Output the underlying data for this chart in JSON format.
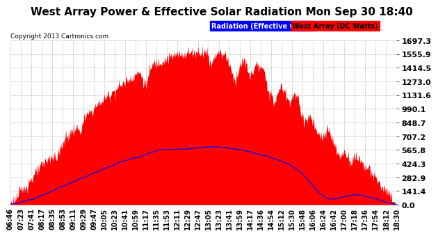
{
  "title": "West Array Power & Effective Solar Radiation Mon Sep 30 18:40",
  "copyright": "Copyright 2013 Cartronics.com",
  "legend_blue": "Radiation (Effective w/m2)",
  "legend_red": "West Array (DC Watts)",
  "ymax": 1697.3,
  "yticks": [
    0.0,
    141.4,
    282.9,
    424.3,
    565.8,
    707.2,
    848.7,
    990.1,
    1131.6,
    1273.0,
    1414.5,
    1555.9,
    1697.3
  ],
  "bg_color": "#ffffff",
  "plot_bg_color": "#ffffff",
  "red_fill_color": "#ff0000",
  "blue_line_color": "#0000ff",
  "grid_color": "#aaaaaa",
  "title_fontsize": 11,
  "copyright_fontsize": 6.5,
  "tick_fontsize": 7,
  "ytick_fontsize": 8,
  "xtick_labels": [
    "06:46",
    "07:23",
    "07:41",
    "08:17",
    "08:35",
    "08:53",
    "09:11",
    "09:29",
    "09:47",
    "10:05",
    "10:23",
    "10:41",
    "10:59",
    "11:17",
    "11:35",
    "11:53",
    "12:11",
    "12:29",
    "12:47",
    "13:05",
    "13:23",
    "13:41",
    "13:59",
    "14:17",
    "14:36",
    "14:54",
    "15:12",
    "15:30",
    "15:48",
    "16:06",
    "16:24",
    "16:42",
    "17:00",
    "17:18",
    "17:36",
    "17:54",
    "18:12",
    "18:30"
  ]
}
